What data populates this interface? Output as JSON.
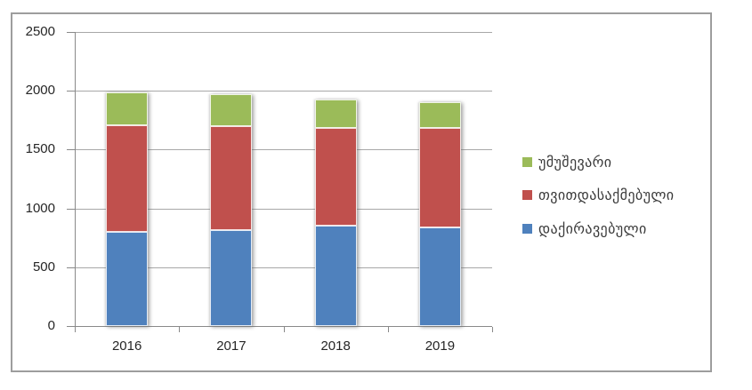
{
  "window": {
    "background": "#ffffff",
    "frame_border_color": "#9d9d9d"
  },
  "chart_data": {
    "type": "bar",
    "stacked": true,
    "title": "",
    "xlabel": "",
    "ylabel": "",
    "categories": [
      "2016",
      "2017",
      "2018",
      "2019"
    ],
    "series": [
      {
        "name": "დაქირავებული",
        "slug": "hired",
        "color": "#4F81BD",
        "values": [
          800,
          815,
          855,
          840
        ]
      },
      {
        "name": "თვითდასაქმებული",
        "slug": "self-employed",
        "color": "#C0504D",
        "values": [
          910,
          885,
          830,
          845
        ]
      },
      {
        "name": "უმუშევარი",
        "slug": "unemployed",
        "color": "#9BBB59",
        "values": [
          275,
          275,
          240,
          220
        ]
      }
    ],
    "ylim": [
      0,
      2500
    ],
    "y_ticks": [
      "0",
      "500",
      "1000",
      "1500",
      "2000",
      "2500"
    ],
    "grid": true,
    "legend_position": "right",
    "legend_order": [
      "unemployed",
      "self-employed",
      "hired"
    ],
    "colors": {
      "grid": "#a8a8a8",
      "axis": "#898989",
      "tick_text": "#262626",
      "legend_text": "#3a3a3a"
    }
  }
}
